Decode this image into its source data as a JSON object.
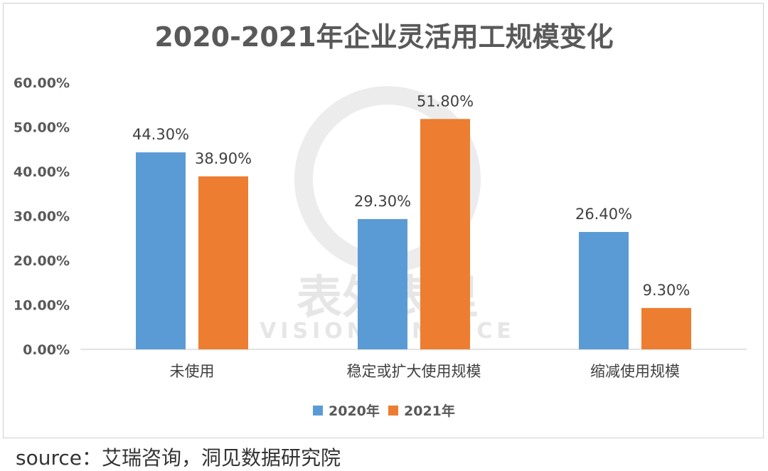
{
  "chart_data": {
    "type": "bar",
    "title": "2020-2021年企业灵活用工规模变化",
    "categories": [
      "未使用",
      "稳定或扩大使用规模",
      "缩减使用规模"
    ],
    "series": [
      {
        "name": "2020年",
        "values": [
          44.3,
          29.3,
          26.4
        ],
        "labels": [
          "44.30%",
          "29.30%",
          "26.40%"
        ],
        "color": "#5b9bd5"
      },
      {
        "name": "2021年",
        "values": [
          38.9,
          51.8,
          9.3
        ],
        "labels": [
          "38.90%",
          "51.80%",
          "9.30%"
        ],
        "color": "#ed7d31"
      }
    ],
    "yticks": [
      "0.00%",
      "10.00%",
      "20.00%",
      "30.00%",
      "40.00%",
      "50.00%",
      "60.00%"
    ],
    "ylim": [
      0,
      60
    ],
    "grid": false,
    "legend": "bottom"
  },
  "watermark": {
    "cn": "表外表里",
    "en": "VISION FINANCE"
  },
  "source": "source：艾瑞咨询，洞见数据研究院"
}
